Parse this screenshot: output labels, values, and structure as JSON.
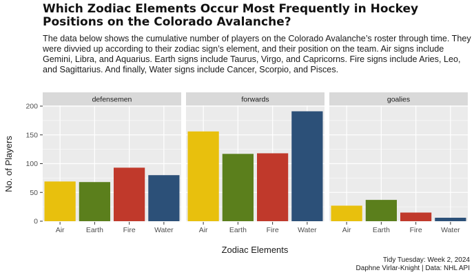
{
  "chart_data": {
    "type": "bar",
    "title": "Which Zodiac Elements Occur Most Frequently in Hockey Positions on the Colorado Avalanche?",
    "subtitle": "The data below shows the cumulative number of players on the Colorado Avalanche’s roster through time. They were divvied up according to their zodiac sign’s element, and their position on the team. Air signs include Gemini, Libra, and Aquarius. Earth signs include Taurus, Virgo, and Capricorns. Fire signs include Aries, Leo, and Sagittarius. And finally, Water signs include Cancer, Scorpio, and Pisces.",
    "xlabel": "Zodiac Elements",
    "ylabel": "No. of Players",
    "ylim": [
      0,
      210
    ],
    "yticks": [
      0,
      50,
      100,
      150,
      200
    ],
    "categories": [
      "Air",
      "Earth",
      "Fire",
      "Water"
    ],
    "colors": {
      "Air": "#E8C00D",
      "Earth": "#5B7F1C",
      "Fire": "#C0392B",
      "Water": "#2C5078"
    },
    "panel_background": "#EBEBEB",
    "strip_background": "#D9D9D9",
    "grid": true,
    "facets": [
      {
        "name": "defensemen",
        "values": [
          69,
          68,
          93,
          80
        ]
      },
      {
        "name": "forwards",
        "values": [
          156,
          117,
          118,
          191
        ]
      },
      {
        "name": "goalies",
        "values": [
          27,
          37,
          15,
          6
        ]
      }
    ],
    "caption": [
      "Tidy Tuesday: Week 2, 2024",
      "Daphne Virlar-Knight | Data: NHL API"
    ]
  }
}
